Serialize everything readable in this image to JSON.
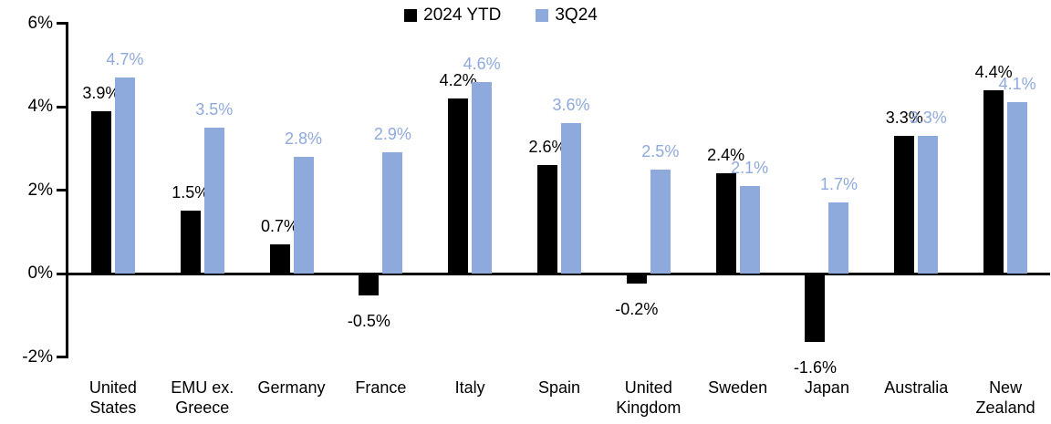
{
  "chart_data": {
    "type": "bar",
    "title": "",
    "xlabel": "",
    "ylabel": "",
    "categories": [
      "United\nStates",
      "EMU ex.\nGreece",
      "Germany",
      "France",
      "Italy",
      "Spain",
      "United\nKingdom",
      "Sweden",
      "Japan",
      "Australia",
      "New\nZealand"
    ],
    "series": [
      {
        "name": "2024 YTD",
        "color": "#000000",
        "values": [
          3.9,
          1.5,
          0.7,
          -0.5,
          4.2,
          2.6,
          -0.2,
          2.4,
          -1.6,
          3.3,
          4.4
        ],
        "data_labels": [
          "3.9%",
          "1.5%",
          "0.7%",
          "-0.5%",
          "4.2%",
          "2.6%",
          "-0.2%",
          "2.4%",
          "-1.6%",
          "3.3%",
          "4.4%"
        ]
      },
      {
        "name": "3Q24",
        "color": "#8EA9DB",
        "values": [
          4.7,
          3.5,
          2.8,
          2.9,
          4.6,
          3.6,
          2.5,
          2.1,
          1.7,
          3.3,
          4.1
        ],
        "data_labels": [
          "4.7%",
          "3.5%",
          "2.8%",
          "2.9%",
          "4.6%",
          "3.6%",
          "2.5%",
          "2.1%",
          "1.7%",
          "3.3%",
          "4.1%"
        ]
      }
    ],
    "y_ticks": [
      {
        "label": "6%",
        "value": 6
      },
      {
        "label": "4%",
        "value": 4
      },
      {
        "label": "2%",
        "value": 2
      },
      {
        "label": "0%",
        "value": 0
      },
      {
        "label": "-2%",
        "value": -2
      }
    ],
    "ylim": [
      -2,
      6
    ],
    "grid": false,
    "legend_position": "top-center",
    "axis_color": "#000000",
    "background_color": "#ffffff"
  }
}
